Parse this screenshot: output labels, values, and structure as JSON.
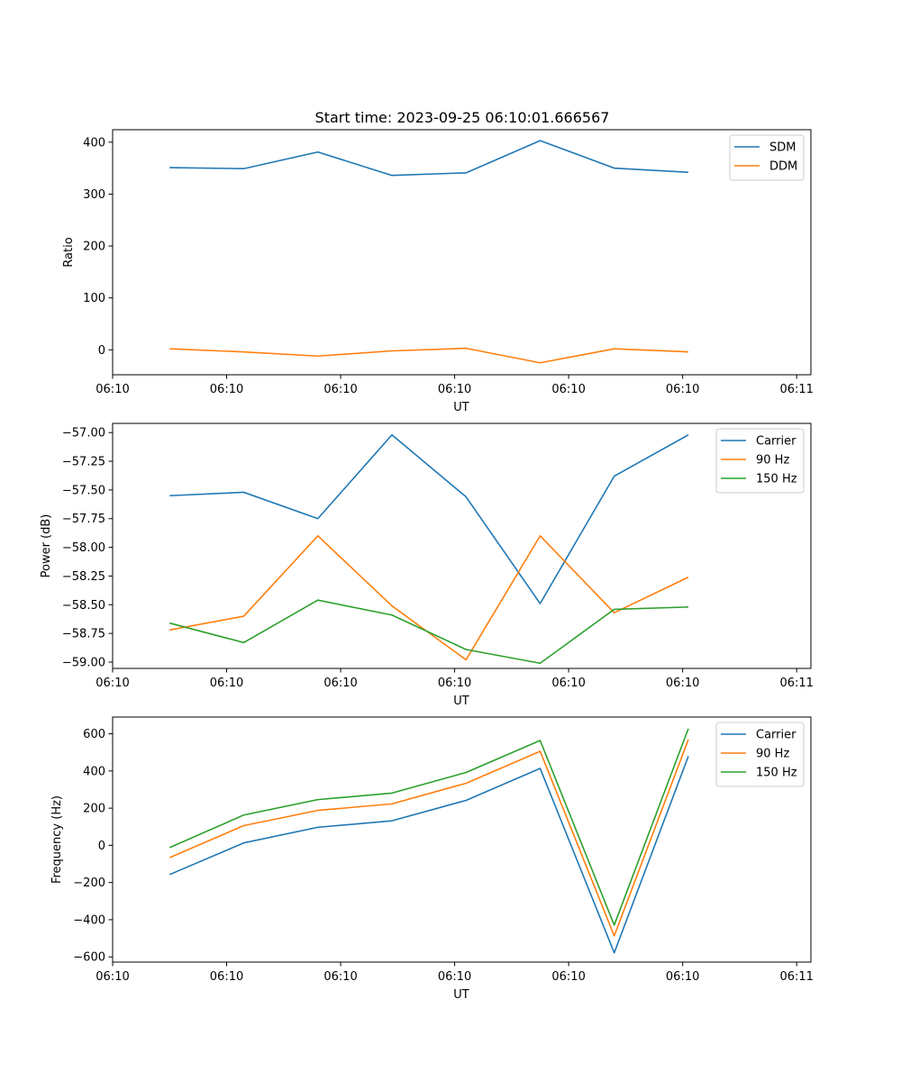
{
  "figure_title": "Start time: 2023-09-25 06:10:01.666567",
  "chart_data": [
    {
      "type": "line",
      "title": "Start time: 2023-09-25 06:10:01.666567",
      "xlabel": "UT",
      "ylabel": "Ratio",
      "xlim": [
        0,
        12.25
      ],
      "ylim": [
        -48,
        424
      ],
      "x_ticks": [
        0,
        2,
        4,
        6,
        8,
        10,
        12
      ],
      "x_tick_labels": [
        "06:10",
        "06:10",
        "06:10",
        "06:10",
        "06:10",
        "06:10",
        "06:11"
      ],
      "y_ticks": [
        0,
        100,
        200,
        300,
        400
      ],
      "y_tick_labels": [
        "0",
        "100",
        "200",
        "300",
        "400"
      ],
      "x": [
        1,
        2.3,
        3.6,
        4.9,
        6.2,
        7.5,
        8.8,
        10.1
      ],
      "series": [
        {
          "name": "SDM",
          "color": "#1f77b4",
          "values": [
            351,
            349,
            381,
            336,
            341,
            403,
            350,
            342
          ]
        },
        {
          "name": "DDM",
          "color": "#ff7f0e",
          "values": [
            2,
            -4,
            -12,
            -2,
            3,
            -25,
            2,
            -4
          ]
        }
      ],
      "legend": "top-right"
    },
    {
      "type": "line",
      "xlabel": "UT",
      "ylabel": "Power (dB)",
      "xlim": [
        0,
        12.25
      ],
      "ylim": [
        -59.055,
        -56.92
      ],
      "x_ticks": [
        0,
        2,
        4,
        6,
        8,
        10,
        12
      ],
      "x_tick_labels": [
        "06:10",
        "06:10",
        "06:10",
        "06:10",
        "06:10",
        "06:10",
        "06:11"
      ],
      "y_ticks": [
        -59.0,
        -58.75,
        -58.5,
        -58.25,
        -58.0,
        -57.75,
        -57.5,
        -57.25,
        -57.0
      ],
      "y_tick_labels": [
        "−59.00",
        "−58.75",
        "−58.50",
        "−58.25",
        "−58.00",
        "−57.75",
        "−57.50",
        "−57.25",
        "−57.00"
      ],
      "x": [
        1,
        2.3,
        3.6,
        4.9,
        6.2,
        7.5,
        8.8,
        10.1
      ],
      "series": [
        {
          "name": "Carrier",
          "color": "#1f77b4",
          "values": [
            -57.55,
            -57.52,
            -57.75,
            -57.02,
            -57.56,
            -58.49,
            -57.38,
            -57.02
          ]
        },
        {
          "name": "90 Hz",
          "color": "#ff7f0e",
          "values": [
            -58.72,
            -58.6,
            -57.9,
            -58.51,
            -58.98,
            -57.9,
            -58.57,
            -58.26
          ]
        },
        {
          "name": "150 Hz",
          "color": "#2ca02c",
          "values": [
            -58.66,
            -58.83,
            -58.46,
            -58.59,
            -58.89,
            -59.01,
            -58.54,
            -58.52
          ]
        }
      ],
      "legend": "top-right"
    },
    {
      "type": "line",
      "xlabel": "UT",
      "ylabel": "Frequency (Hz)",
      "xlim": [
        0,
        12.25
      ],
      "ylim": [
        -628,
        690
      ],
      "x_ticks": [
        0,
        2,
        4,
        6,
        8,
        10,
        12
      ],
      "x_tick_labels": [
        "06:10",
        "06:10",
        "06:10",
        "06:10",
        "06:10",
        "06:10",
        "06:11"
      ],
      "y_ticks": [
        -600,
        -400,
        -200,
        0,
        200,
        400,
        600
      ],
      "y_tick_labels": [
        "−600",
        "−400",
        "−200",
        "0",
        "200",
        "400",
        "600"
      ],
      "x": [
        1,
        2.3,
        3.6,
        4.9,
        6.2,
        7.5,
        8.8,
        10.1
      ],
      "series": [
        {
          "name": "Carrier",
          "color": "#1f77b4",
          "values": [
            -157,
            13,
            97,
            132,
            242,
            414,
            -578,
            479
          ]
        },
        {
          "name": "90 Hz",
          "color": "#ff7f0e",
          "values": [
            -66,
            106,
            188,
            223,
            334,
            506,
            -487,
            569
          ]
        },
        {
          "name": "150 Hz",
          "color": "#2ca02c",
          "values": [
            -12,
            163,
            246,
            281,
            392,
            564,
            -429,
            628
          ]
        }
      ],
      "legend": "top-right"
    }
  ]
}
